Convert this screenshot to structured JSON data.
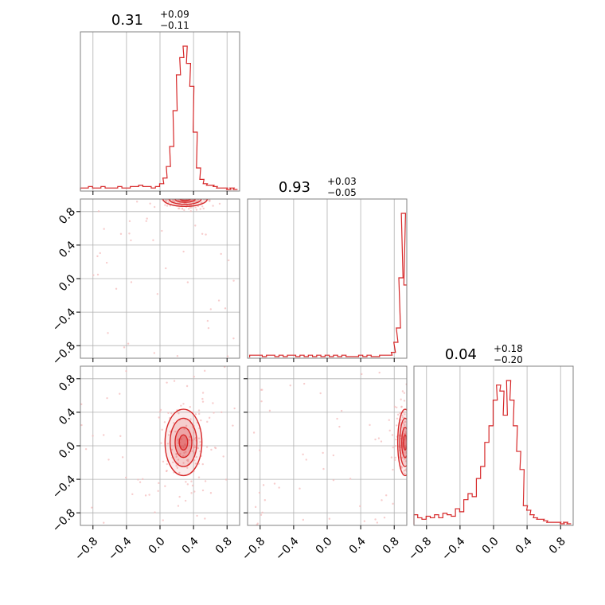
{
  "colors": {
    "accent": "#d62728",
    "scatter": "#f4b8b8",
    "grid": "#b0b0b0",
    "frame": "#808080"
  },
  "chart_data": {
    "type": "corner",
    "grid": true,
    "axis_range": [
      -0.95,
      0.95
    ],
    "ticks": [
      -0.8,
      -0.4,
      0.0,
      0.4,
      0.8
    ],
    "tick_labels": [
      "−0.8",
      "−0.4",
      "0.0",
      "0.4",
      "0.8"
    ],
    "titles": [
      {
        "value": "0.31",
        "plus": "+0.09",
        "minus": "−0.11"
      },
      {
        "value": "0.93",
        "plus": "+0.03",
        "minus": "−0.05"
      },
      {
        "value": "0.04",
        "plus": "+0.18",
        "minus": "−0.20"
      }
    ],
    "histograms": [
      {
        "x": [
          -0.93,
          -0.88,
          -0.83,
          -0.78,
          -0.73,
          -0.68,
          -0.63,
          -0.58,
          -0.53,
          -0.48,
          -0.43,
          -0.38,
          -0.33,
          -0.28,
          -0.23,
          -0.18,
          -0.13,
          -0.08,
          -0.03,
          0.02,
          0.06,
          0.1,
          0.14,
          0.18,
          0.22,
          0.26,
          0.3,
          0.34,
          0.38,
          0.42,
          0.46,
          0.5,
          0.54,
          0.58,
          0.62,
          0.66,
          0.7,
          0.74,
          0.78,
          0.82,
          0.86,
          0.9
        ],
        "counts": [
          1,
          1,
          2,
          1,
          1,
          2,
          1,
          1,
          1,
          2,
          1,
          1,
          2,
          2,
          3,
          2,
          2,
          1,
          2,
          4,
          8,
          16,
          30,
          55,
          80,
          92,
          100,
          88,
          72,
          40,
          15,
          7,
          4,
          3,
          3,
          2,
          1,
          1,
          1,
          0,
          1,
          0
        ]
      },
      {
        "x": [
          -0.9,
          -0.85,
          -0.8,
          -0.75,
          -0.7,
          -0.65,
          -0.6,
          -0.55,
          -0.5,
          -0.45,
          -0.4,
          -0.35,
          -0.3,
          -0.25,
          -0.2,
          -0.15,
          -0.1,
          -0.05,
          0.0,
          0.05,
          0.1,
          0.15,
          0.2,
          0.25,
          0.3,
          0.35,
          0.4,
          0.45,
          0.5,
          0.55,
          0.6,
          0.65,
          0.7,
          0.75,
          0.79,
          0.82,
          0.85,
          0.88,
          0.91,
          0.94
        ],
        "counts": [
          1,
          1,
          1,
          0,
          1,
          1,
          0,
          1,
          0,
          1,
          1,
          0,
          1,
          0,
          1,
          0,
          1,
          0,
          1,
          0,
          1,
          0,
          1,
          0,
          0,
          0,
          1,
          0,
          1,
          0,
          0,
          1,
          1,
          1,
          3,
          10,
          20,
          55,
          100,
          50
        ]
      },
      {
        "x": [
          -0.93,
          -0.88,
          -0.83,
          -0.78,
          -0.73,
          -0.68,
          -0.63,
          -0.58,
          -0.53,
          -0.48,
          -0.43,
          -0.38,
          -0.33,
          -0.28,
          -0.23,
          -0.18,
          -0.13,
          -0.08,
          -0.03,
          0.02,
          0.06,
          0.1,
          0.14,
          0.18,
          0.22,
          0.26,
          0.3,
          0.34,
          0.38,
          0.42,
          0.46,
          0.5,
          0.54,
          0.58,
          0.62,
          0.66,
          0.7,
          0.74,
          0.78,
          0.82,
          0.86,
          0.9
        ],
        "counts": [
          6,
          4,
          3,
          5,
          4,
          6,
          4,
          7,
          6,
          5,
          10,
          8,
          16,
          20,
          18,
          30,
          38,
          54,
          65,
          82,
          92,
          88,
          72,
          95,
          82,
          65,
          48,
          36,
          12,
          9,
          6,
          4,
          3,
          3,
          2,
          1,
          1,
          1,
          1,
          0,
          1,
          0
        ]
      }
    ],
    "pairs": [
      {
        "panel": "1-0",
        "x_center": 0.3,
        "y_center": 0.95,
        "x_spread": 0.12,
        "y_spread": 0.04
      },
      {
        "panel": "2-0",
        "x_center": 0.28,
        "y_center": 0.04,
        "x_spread": 0.1,
        "y_spread": 0.18
      },
      {
        "panel": "2-1",
        "x_center": 0.93,
        "y_center": 0.04,
        "x_spread": 0.04,
        "y_spread": 0.18
      }
    ]
  }
}
